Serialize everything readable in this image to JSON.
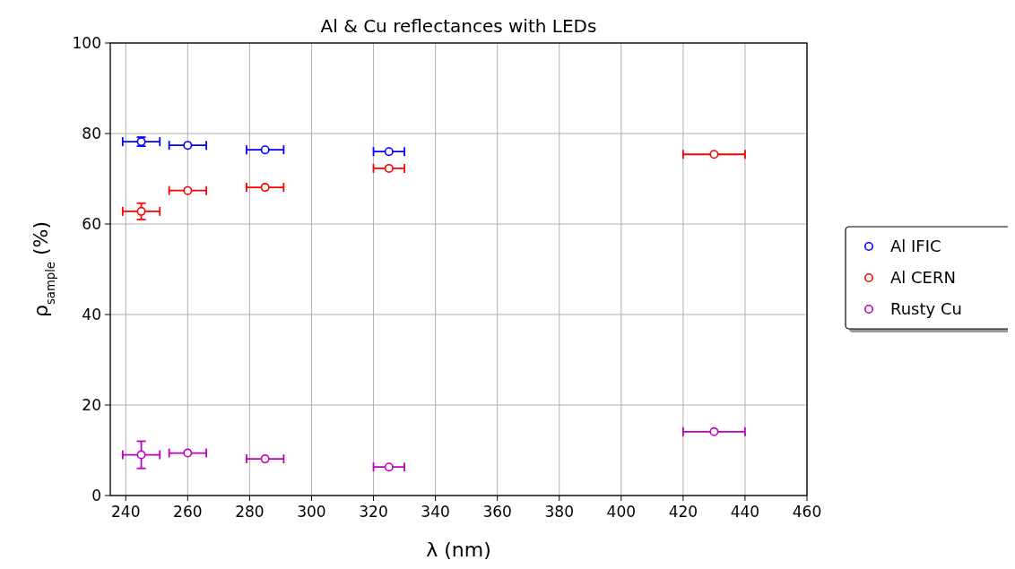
{
  "chart_data": {
    "type": "scatter",
    "title": "Al & Cu reflectances with LEDs",
    "xlabel": "λ (nm)",
    "ylabel": "ρ$_{sample}$ (%)",
    "xlim": [
      235,
      460
    ],
    "xticks": [
      240,
      260,
      280,
      300,
      320,
      340,
      360,
      380,
      400,
      420,
      440,
      460
    ],
    "ylim": [
      0,
      100
    ],
    "yticks": [
      0,
      20,
      40,
      60,
      80,
      100
    ],
    "grid": true,
    "legend": "right",
    "marker": "circle",
    "series": [
      {
        "name": "Al IFIC",
        "color": "#0000ff",
        "x": [
          245,
          260,
          285,
          325
        ],
        "values": [
          78.2,
          77.4,
          76.4,
          76.0
        ],
        "errors": [
          1,
          null,
          null,
          null
        ],
        "xerrors": [
          6,
          6,
          6,
          5
        ]
      },
      {
        "name": "Al CERN",
        "color": "#ff0000",
        "x": [
          245,
          260,
          285,
          325,
          430
        ],
        "values": [
          62.8,
          67.4,
          68.1,
          72.3,
          75.4
        ],
        "errors": [
          1.8,
          null,
          null,
          null,
          null
        ],
        "xerrors": [
          6,
          6,
          6,
          5,
          10
        ]
      },
      {
        "name": "Rusty Cu",
        "color": "#bf00bf",
        "x": [
          245,
          260,
          285,
          325,
          430
        ],
        "values": [
          9.0,
          9.4,
          8.1,
          6.3,
          14.1
        ],
        "errors": [
          3,
          null,
          null,
          null,
          null
        ],
        "xerrors": [
          6,
          6,
          6,
          5,
          10
        ]
      }
    ]
  }
}
